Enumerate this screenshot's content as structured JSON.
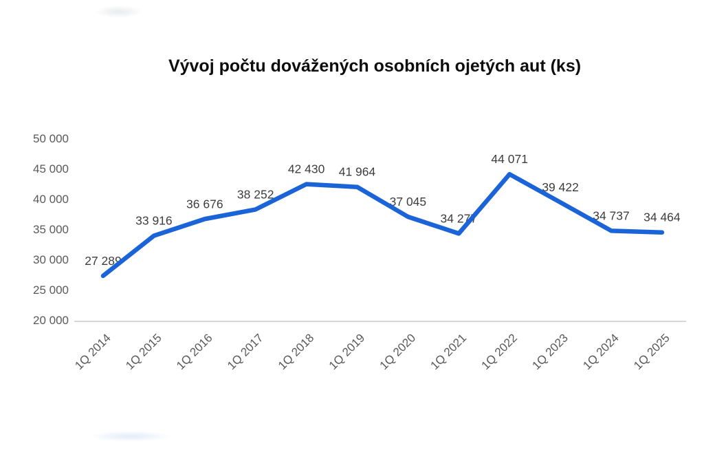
{
  "chart_data": {
    "type": "line",
    "title": "Vývoj počtu dovážených osobních ojetých aut (ks)",
    "categories": [
      "1Q 2014",
      "1Q 2015",
      "1Q 2016",
      "1Q 2017",
      "1Q 2018",
      "1Q 2019",
      "1Q 2020",
      "1Q 2021",
      "1Q 2022",
      "1Q 2023",
      "1Q 2024",
      "1Q 2025"
    ],
    "values": [
      27289,
      33916,
      36676,
      38252,
      42430,
      41964,
      37045,
      34277,
      44071,
      39422,
      34737,
      34464
    ],
    "value_labels": [
      "27 289",
      "33 916",
      "36 676",
      "38 252",
      "42 430",
      "41 964",
      "37 045",
      "34 277",
      "44 071",
      "39 422",
      "34 737",
      "34 464"
    ],
    "y_ticks": [
      50000,
      45000,
      40000,
      35000,
      30000,
      25000,
      20000
    ],
    "y_tick_labels": [
      "50 000",
      "45 000",
      "40 000",
      "35 000",
      "30 000",
      "25 000",
      "20 000"
    ],
    "ylim": [
      20000,
      50000
    ],
    "xlabel": "",
    "ylabel": "",
    "grid": false,
    "legend": false,
    "line_color": "#1b64d8",
    "data_label_color": "#3d3d3d",
    "tick_label_color": "#595959",
    "axis_line_color": "#d6d6d6"
  }
}
